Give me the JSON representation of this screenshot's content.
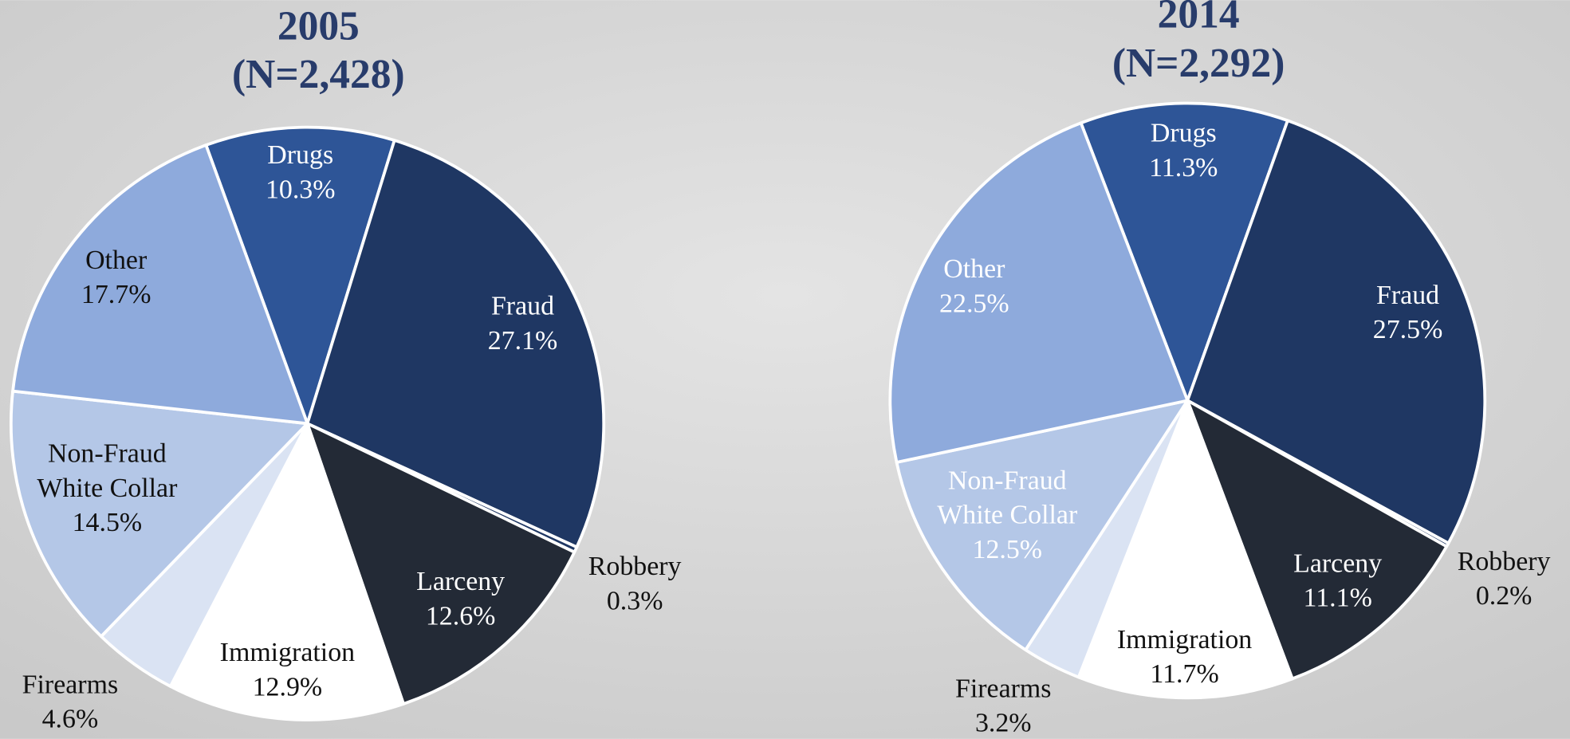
{
  "chart_data": [
    {
      "type": "pie",
      "title": "2005",
      "subtitle": "(N=2,428)",
      "categories": [
        "Drugs",
        "Fraud",
        "Robbery",
        "Larceny",
        "Immigration",
        "Firearms",
        "Non-Fraud White Collar",
        "Other"
      ],
      "values": [
        10.3,
        27.1,
        0.3,
        12.6,
        12.9,
        4.6,
        14.5,
        17.7
      ],
      "value_labels": [
        "10.3%",
        "27.1%",
        "0.3%",
        "12.6%",
        "12.9%",
        "4.6%",
        "14.5%",
        "17.7%"
      ],
      "colors": [
        "#2e5597",
        "#1f3763",
        "#1f3763",
        "#232a36",
        "#ffffff",
        "#dae3f3",
        "#b4c7e7",
        "#8eaadc"
      ],
      "label_colors": [
        "#ffffff",
        "#ffffff",
        "#111111",
        "#ffffff",
        "#111111",
        "#111111",
        "#111111",
        "#111111"
      ]
    },
    {
      "type": "pie",
      "title": "2014",
      "subtitle": "(N=2,292)",
      "categories": [
        "Drugs",
        "Fraud",
        "Robbery",
        "Larceny",
        "Immigration",
        "Firearms",
        "Non-Fraud White Collar",
        "Other"
      ],
      "values": [
        11.3,
        27.5,
        0.2,
        11.1,
        11.7,
        3.2,
        12.5,
        22.5
      ],
      "value_labels": [
        "11.3%",
        "27.5%",
        "0.2%",
        "11.1%",
        "11.7%",
        "3.2%",
        "12.5%",
        "22.5%"
      ],
      "colors": [
        "#2e5597",
        "#1f3763",
        "#1f3763",
        "#232a36",
        "#ffffff",
        "#dae3f3",
        "#b4c7e7",
        "#8eaadc"
      ],
      "label_colors": [
        "#ffffff",
        "#ffffff",
        "#111111",
        "#ffffff",
        "#111111",
        "#111111",
        "#ffffff",
        "#ffffff"
      ]
    }
  ]
}
